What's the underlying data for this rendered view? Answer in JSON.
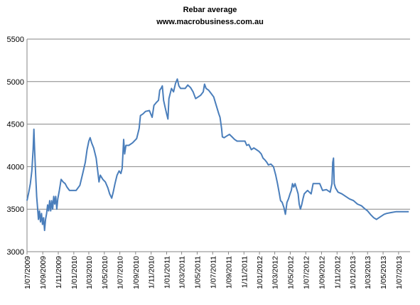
{
  "chart_data": {
    "type": "line",
    "title": "Rebar average",
    "subtitle": "www.macrobusiness.com.au",
    "xlabel": "",
    "ylabel": "",
    "ylim": [
      3000,
      5500
    ],
    "yticks": [
      3000,
      3500,
      4000,
      4500,
      5000,
      5500
    ],
    "xlim": [
      "2009-07-01",
      "2013-08-15"
    ],
    "xticks": [
      "1/07/2009",
      "1/09/2009",
      "1/11/2009",
      "1/01/2010",
      "1/03/2010",
      "1/05/2010",
      "1/07/2010",
      "1/09/2010",
      "1/11/2010",
      "1/01/2011",
      "1/03/2011",
      "1/05/2011",
      "1/07/2011",
      "1/09/2011",
      "1/11/2011",
      "1/01/2012",
      "1/03/2012",
      "1/05/2012",
      "1/07/2012",
      "1/09/2012",
      "1/11/2012",
      "1/01/2013",
      "1/03/2013",
      "1/05/2013",
      "1/07/2013"
    ],
    "grid": "horizontal",
    "legend": "none",
    "color": "#4a7ebb",
    "series": [
      {
        "values": [
          [
            "2009-07-01",
            3600
          ],
          [
            "2009-07-08",
            3700
          ],
          [
            "2009-07-14",
            3800
          ],
          [
            "2009-07-20",
            3950
          ],
          [
            "2009-07-25",
            4200
          ],
          [
            "2009-07-28",
            4440
          ],
          [
            "2009-07-31",
            4200
          ],
          [
            "2009-08-04",
            3900
          ],
          [
            "2009-08-08",
            3650
          ],
          [
            "2009-08-12",
            3500
          ],
          [
            "2009-08-15",
            3380
          ],
          [
            "2009-08-19",
            3480
          ],
          [
            "2009-08-23",
            3350
          ],
          [
            "2009-08-27",
            3450
          ],
          [
            "2009-08-31",
            3320
          ],
          [
            "2009-09-04",
            3400
          ],
          [
            "2009-09-08",
            3250
          ],
          [
            "2009-09-12",
            3380
          ],
          [
            "2009-09-16",
            3450
          ],
          [
            "2009-09-20",
            3550
          ],
          [
            "2009-09-24",
            3480
          ],
          [
            "2009-09-28",
            3600
          ],
          [
            "2009-10-02",
            3480
          ],
          [
            "2009-10-06",
            3600
          ],
          [
            "2009-10-10",
            3500
          ],
          [
            "2009-10-14",
            3650
          ],
          [
            "2009-10-18",
            3560
          ],
          [
            "2009-10-22",
            3650
          ],
          [
            "2009-10-26",
            3500
          ],
          [
            "2009-10-30",
            3620
          ],
          [
            "2009-11-05",
            3720
          ],
          [
            "2009-11-12",
            3850
          ],
          [
            "2009-11-20",
            3820
          ],
          [
            "2009-11-28",
            3800
          ],
          [
            "2009-12-05",
            3760
          ],
          [
            "2009-12-15",
            3720
          ],
          [
            "2009-12-30",
            3720
          ],
          [
            "2010-01-10",
            3720
          ],
          [
            "2010-01-25",
            3780
          ],
          [
            "2010-02-05",
            3920
          ],
          [
            "2010-02-15",
            4050
          ],
          [
            "2010-02-22",
            4200
          ],
          [
            "2010-03-01",
            4300
          ],
          [
            "2010-03-06",
            4340
          ],
          [
            "2010-03-12",
            4280
          ],
          [
            "2010-03-20",
            4220
          ],
          [
            "2010-03-30",
            4100
          ],
          [
            "2010-04-05",
            3950
          ],
          [
            "2010-04-10",
            3820
          ],
          [
            "2010-04-15",
            3900
          ],
          [
            "2010-04-25",
            3850
          ],
          [
            "2010-05-05",
            3820
          ],
          [
            "2010-05-15",
            3750
          ],
          [
            "2010-05-22",
            3680
          ],
          [
            "2010-05-30",
            3630
          ],
          [
            "2010-06-05",
            3700
          ],
          [
            "2010-06-12",
            3800
          ],
          [
            "2010-06-20",
            3900
          ],
          [
            "2010-06-28",
            3950
          ],
          [
            "2010-07-05",
            3920
          ],
          [
            "2010-07-10",
            3980
          ],
          [
            "2010-07-16",
            4320
          ],
          [
            "2010-07-20",
            4150
          ],
          [
            "2010-07-25",
            4250
          ],
          [
            "2010-08-05",
            4250
          ],
          [
            "2010-08-20",
            4280
          ],
          [
            "2010-09-05",
            4330
          ],
          [
            "2010-09-15",
            4450
          ],
          [
            "2010-09-20",
            4600
          ],
          [
            "2010-09-30",
            4620
          ],
          [
            "2010-10-10",
            4650
          ],
          [
            "2010-10-25",
            4660
          ],
          [
            "2010-11-05",
            4580
          ],
          [
            "2010-11-12",
            4720
          ],
          [
            "2010-11-20",
            4750
          ],
          [
            "2010-11-30",
            4780
          ],
          [
            "2010-12-05",
            4900
          ],
          [
            "2010-12-10",
            4920
          ],
          [
            "2010-12-15",
            4950
          ],
          [
            "2010-12-20",
            4780
          ],
          [
            "2010-12-26",
            4700
          ],
          [
            "2011-01-01",
            4620
          ],
          [
            "2011-01-06",
            4560
          ],
          [
            "2011-01-10",
            4800
          ],
          [
            "2011-01-15",
            4860
          ],
          [
            "2011-01-20",
            4920
          ],
          [
            "2011-01-28",
            4880
          ],
          [
            "2011-02-05",
            4980
          ],
          [
            "2011-02-12",
            5030
          ],
          [
            "2011-02-18",
            4950
          ],
          [
            "2011-02-25",
            4920
          ],
          [
            "2011-03-05",
            4920
          ],
          [
            "2011-03-15",
            4920
          ],
          [
            "2011-03-25",
            4960
          ],
          [
            "2011-04-05",
            4930
          ],
          [
            "2011-04-15",
            4880
          ],
          [
            "2011-04-25",
            4800
          ],
          [
            "2011-05-05",
            4820
          ],
          [
            "2011-05-15",
            4840
          ],
          [
            "2011-05-25",
            4880
          ],
          [
            "2011-05-30",
            4970
          ],
          [
            "2011-06-05",
            4920
          ],
          [
            "2011-06-15",
            4900
          ],
          [
            "2011-06-25",
            4860
          ],
          [
            "2011-07-05",
            4820
          ],
          [
            "2011-07-15",
            4720
          ],
          [
            "2011-07-25",
            4620
          ],
          [
            "2011-07-30",
            4580
          ],
          [
            "2011-08-05",
            4450
          ],
          [
            "2011-08-08",
            4350
          ],
          [
            "2011-08-15",
            4340
          ],
          [
            "2011-08-25",
            4360
          ],
          [
            "2011-09-05",
            4380
          ],
          [
            "2011-09-15",
            4350
          ],
          [
            "2011-09-25",
            4320
          ],
          [
            "2011-10-05",
            4300
          ],
          [
            "2011-10-15",
            4300
          ],
          [
            "2011-10-25",
            4300
          ],
          [
            "2011-11-05",
            4300
          ],
          [
            "2011-11-12",
            4250
          ],
          [
            "2011-11-20",
            4260
          ],
          [
            "2011-11-30",
            4200
          ],
          [
            "2011-12-10",
            4220
          ],
          [
            "2011-12-20",
            4200
          ],
          [
            "2011-12-30",
            4180
          ],
          [
            "2012-01-08",
            4150
          ],
          [
            "2012-01-15",
            4100
          ],
          [
            "2012-01-22",
            4080
          ],
          [
            "2012-01-30",
            4050
          ],
          [
            "2012-02-05",
            4020
          ],
          [
            "2012-02-15",
            4030
          ],
          [
            "2012-02-25",
            4000
          ],
          [
            "2012-03-05",
            3900
          ],
          [
            "2012-03-12",
            3800
          ],
          [
            "2012-03-18",
            3700
          ],
          [
            "2012-03-24",
            3600
          ],
          [
            "2012-03-30",
            3580
          ],
          [
            "2012-04-06",
            3520
          ],
          [
            "2012-04-12",
            3440
          ],
          [
            "2012-04-18",
            3580
          ],
          [
            "2012-04-24",
            3620
          ],
          [
            "2012-04-30",
            3680
          ],
          [
            "2012-05-05",
            3720
          ],
          [
            "2012-05-10",
            3800
          ],
          [
            "2012-05-15",
            3760
          ],
          [
            "2012-05-20",
            3800
          ],
          [
            "2012-05-26",
            3740
          ],
          [
            "2012-06-01",
            3680
          ],
          [
            "2012-06-05",
            3560
          ],
          [
            "2012-06-10",
            3500
          ],
          [
            "2012-06-15",
            3550
          ],
          [
            "2012-06-20",
            3620
          ],
          [
            "2012-06-25",
            3680
          ],
          [
            "2012-07-01",
            3700
          ],
          [
            "2012-07-08",
            3720
          ],
          [
            "2012-07-15",
            3700
          ],
          [
            "2012-07-22",
            3680
          ],
          [
            "2012-07-30",
            3800
          ],
          [
            "2012-08-10",
            3800
          ],
          [
            "2012-08-25",
            3800
          ],
          [
            "2012-09-05",
            3720
          ],
          [
            "2012-09-20",
            3730
          ],
          [
            "2012-10-05",
            3700
          ],
          [
            "2012-10-12",
            3800
          ],
          [
            "2012-10-15",
            4050
          ],
          [
            "2012-10-18",
            4100
          ],
          [
            "2012-10-21",
            3800
          ],
          [
            "2012-10-26",
            3750
          ],
          [
            "2012-11-05",
            3700
          ],
          [
            "2012-11-20",
            3680
          ],
          [
            "2012-12-05",
            3650
          ],
          [
            "2012-12-20",
            3620
          ],
          [
            "2013-01-05",
            3600
          ],
          [
            "2013-01-20",
            3560
          ],
          [
            "2013-02-05",
            3540
          ],
          [
            "2013-02-20",
            3500
          ],
          [
            "2013-03-01",
            3480
          ],
          [
            "2013-03-15",
            3430
          ],
          [
            "2013-03-25",
            3400
          ],
          [
            "2013-04-05",
            3380
          ],
          [
            "2013-04-15",
            3400
          ],
          [
            "2013-04-25",
            3420
          ],
          [
            "2013-05-05",
            3440
          ],
          [
            "2013-05-15",
            3450
          ],
          [
            "2013-06-01",
            3460
          ],
          [
            "2013-06-20",
            3470
          ],
          [
            "2013-07-10",
            3470
          ],
          [
            "2013-08-10",
            3470
          ]
        ]
      }
    ]
  }
}
